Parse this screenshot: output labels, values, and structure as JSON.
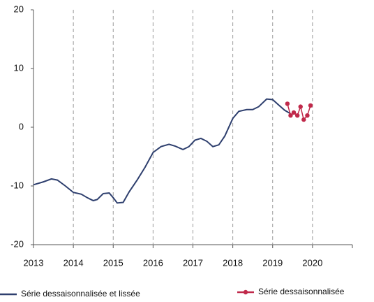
{
  "chart_data": {
    "type": "line",
    "xlim": [
      2013,
      2021
    ],
    "xticks": [
      2013,
      2014,
      2015,
      2016,
      2017,
      2018,
      2019,
      2020
    ],
    "ylim": [
      -20,
      20
    ],
    "yticks": [
      -20,
      -10,
      0,
      10,
      20
    ],
    "grid": true,
    "legend": "bottom",
    "series": [
      {
        "name": "Série dessaisonnalisée et lissée",
        "color": "#2e3f6e",
        "markers": false,
        "x": [
          2013.0,
          2013.25,
          2013.45,
          2013.6,
          2013.8,
          2014.0,
          2014.2,
          2014.35,
          2014.5,
          2014.6,
          2014.75,
          2014.9,
          2015.0,
          2015.1,
          2015.25,
          2015.4,
          2015.6,
          2015.8,
          2016.0,
          2016.2,
          2016.4,
          2016.55,
          2016.75,
          2016.9,
          2017.05,
          2017.2,
          2017.35,
          2017.5,
          2017.65,
          2017.8,
          2018.0,
          2018.15,
          2018.35,
          2018.5,
          2018.65,
          2018.85,
          2019.0,
          2019.15,
          2019.3,
          2019.45
        ],
        "values": [
          -9.8,
          -9.3,
          -8.8,
          -9.0,
          -10.0,
          -11.1,
          -11.4,
          -12.0,
          -12.5,
          -12.3,
          -11.3,
          -11.2,
          -12.0,
          -12.9,
          -12.8,
          -11.0,
          -9.0,
          -6.8,
          -4.3,
          -3.3,
          -2.9,
          -3.2,
          -3.8,
          -3.3,
          -2.2,
          -1.9,
          -2.4,
          -3.3,
          -3.0,
          -1.5,
          1.5,
          2.7,
          3.0,
          3.0,
          3.5,
          4.8,
          4.7,
          3.8,
          2.9,
          2.3
        ]
      },
      {
        "name": "Série dessaisonnalisée",
        "color": "#c0294a",
        "markers": true,
        "x": [
          2019.37,
          2019.45,
          2019.53,
          2019.62,
          2019.7,
          2019.78,
          2019.87,
          2019.95
        ],
        "values": [
          4.0,
          2.0,
          2.5,
          2.0,
          3.5,
          1.3,
          2.0,
          3.7
        ]
      }
    ]
  }
}
